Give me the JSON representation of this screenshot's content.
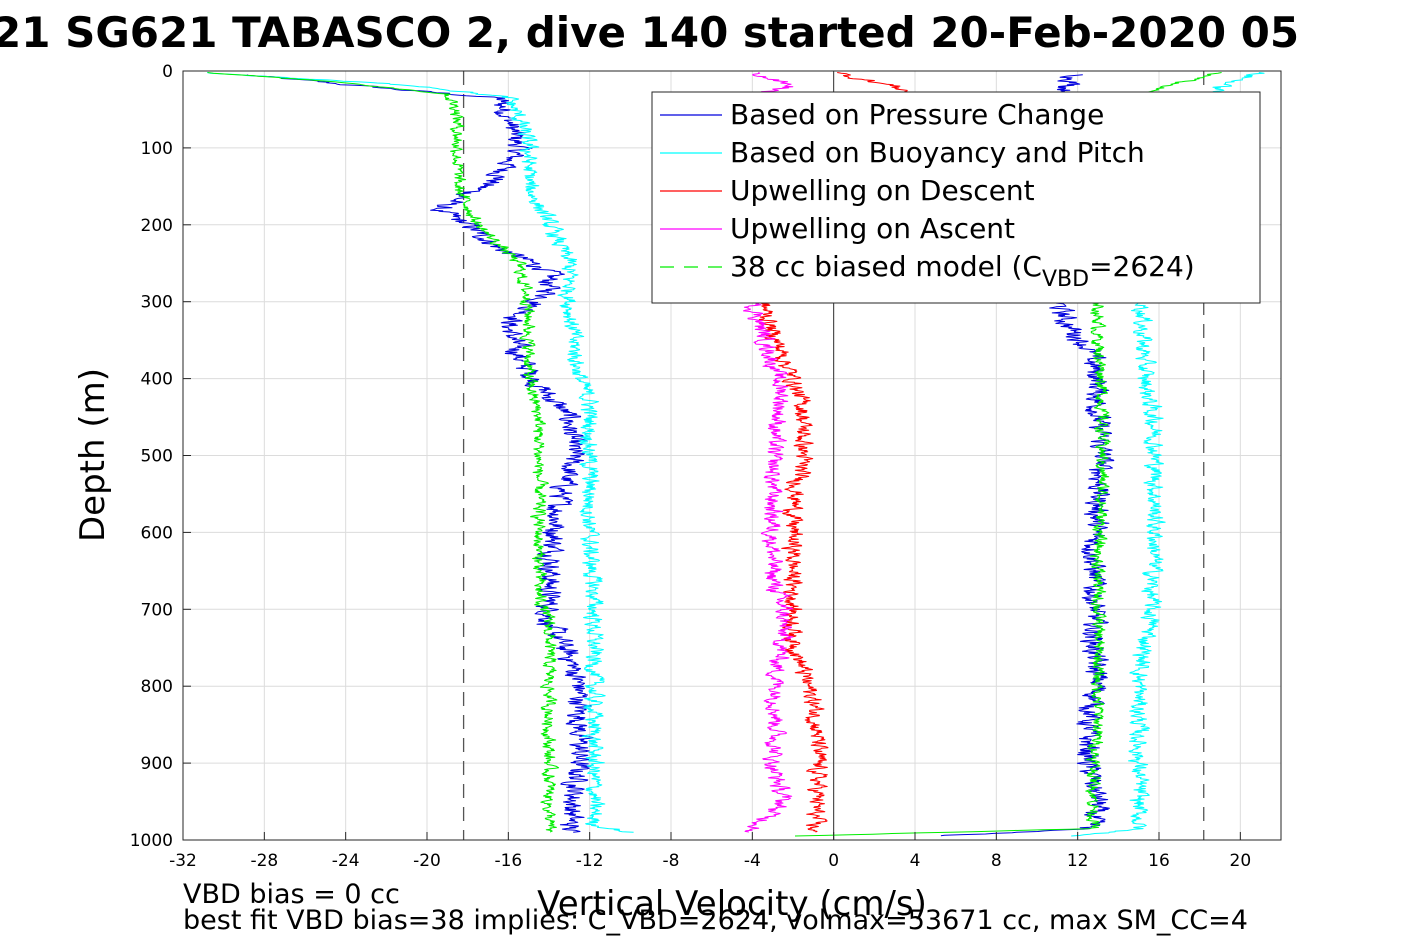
{
  "chart_data": {
    "type": "line",
    "title": "21 SG621 TABASCO 2, dive 140 started 20-Feb-2020 05",
    "xlabel": "Vertical Velocity (cm/s)",
    "ylabel": "Depth (m)",
    "xlim": [
      -32,
      22
    ],
    "ylim": [
      1000,
      0
    ],
    "y_reversed": true,
    "grid": true,
    "x_ticks": [
      -32,
      -28,
      -24,
      -20,
      -16,
      -12,
      -8,
      -4,
      0,
      4,
      8,
      12,
      16,
      20
    ],
    "x_tick_labels": [
      "-32",
      "-28",
      "-24",
      "-20",
      "-16",
      "-12",
      "-8",
      "-4",
      "0",
      "4",
      "8",
      "12",
      "16",
      "20"
    ],
    "y_ticks": [
      0,
      100,
      200,
      300,
      400,
      500,
      600,
      700,
      800,
      900,
      1000
    ],
    "y_tick_labels": [
      "0",
      "100",
      "200",
      "300",
      "400",
      "500",
      "600",
      "700",
      "800",
      "900",
      "1000"
    ],
    "reference_lines": {
      "dashed_x": [
        -18.2,
        18.2
      ],
      "solid_x": [
        0
      ]
    },
    "legend_position": "top-right",
    "legend": [
      {
        "pre": "Based on Pressure Change",
        "sub": "",
        "post": "",
        "color": "#0000dd",
        "style": "solid"
      },
      {
        "pre": "Based on Buoyancy and Pitch",
        "sub": "",
        "post": "",
        "color": "#00ffff",
        "style": "solid"
      },
      {
        "pre": "Upwelling on Descent",
        "sub": "",
        "post": "",
        "color": "#ff0000",
        "style": "solid"
      },
      {
        "pre": "Upwelling on Ascent",
        "sub": "",
        "post": "",
        "color": "#ff00ff",
        "style": "solid"
      },
      {
        "pre": "38 cc biased model (C",
        "sub": "VBD",
        "post": "=2624)",
        "color": "#00ee00",
        "style": "dashed"
      }
    ],
    "series": [
      {
        "name": "Based on Pressure Change",
        "color": "#0000dd",
        "noise": 0.45,
        "segments": [
          {
            "depth": [
              5,
              25,
              35,
              60,
              100,
              140,
              180,
              200,
              230,
              260,
              290,
              330,
              370,
              410,
              450,
              500,
              560,
              620,
              680,
              720,
              760,
              800,
              850,
              900,
              950,
              990
            ],
            "v": [
              -29,
              -21,
              -16.5,
              -16,
              -15.5,
              -16.5,
              -19.5,
              -18,
              -16.5,
              -14,
              -14,
              -16,
              -15.5,
              -14.5,
              -13,
              -12.8,
              -13.5,
              -13.8,
              -14,
              -14,
              -13,
              -12.5,
              -12.5,
              -12.5,
              -12.8,
              -13
            ]
          },
          {
            "depth": [
              5,
              25,
              60,
              100,
              200,
              260,
              300,
              330,
              360,
              400,
              460,
              500,
              560,
              620,
              680,
              720,
              760,
              800,
              850,
              900,
              950,
              985,
              995
            ],
            "v": [
              12,
              11.5,
              13,
              13,
              12,
              11.5,
              11,
              11.5,
              12.5,
              13,
              13,
              13.2,
              13,
              12.8,
              12.8,
              12.8,
              12.8,
              13,
              12.5,
              12.5,
              13,
              12.5,
              5
            ]
          }
        ]
      },
      {
        "name": "Based on Buoyancy and Pitch",
        "color": "#00ffff",
        "noise": 0.35,
        "segments": [
          {
            "depth": [
              2,
              20,
              35,
              60,
              100,
              150,
              200,
              250,
              300,
              350,
              400,
              430,
              500,
              560,
              620,
              680,
              720,
              760,
              800,
              850,
              900,
              950,
              980,
              990
            ],
            "v": [
              -31,
              -20,
              -16,
              -15.5,
              -15,
              -15,
              -14,
              -13,
              -13,
              -12.8,
              -12.5,
              -12,
              -12,
              -12,
              -12,
              -11.8,
              -11.8,
              -11.8,
              -11.8,
              -11.8,
              -11.8,
              -11.8,
              -11.8,
              -10
            ]
          },
          {
            "depth": [
              2,
              20,
              100,
              300,
              340,
              400,
              460,
              500,
              560,
              620,
              680,
              720,
              760,
              800,
              850,
              900,
              950,
              985,
              995
            ],
            "v": [
              21,
              19,
              17,
              15.2,
              15.2,
              15.3,
              15.8,
              15.8,
              15.8,
              15.8,
              15.6,
              15.6,
              15.2,
              15,
              15,
              15,
              15,
              15,
              12
            ]
          }
        ]
      },
      {
        "name": "Upwelling on Descent",
        "color": "#ff0000",
        "noise": 0.35,
        "segments": [
          {
            "depth": [
              2,
              20,
              40
            ],
            "v": [
              0,
              3,
              5
            ]
          },
          {
            "depth": [
              300,
              340,
              370,
              400,
              440,
              470,
              500,
              540,
              580,
              620,
              660,
              700,
              740,
              780,
              820,
              860,
              900,
              940,
              990
            ],
            "v": [
              -3.5,
              -3,
              -2.5,
              -2,
              -1.5,
              -1.5,
              -1.5,
              -1.8,
              -2,
              -2,
              -2,
              -2,
              -2,
              -1.5,
              -1,
              -0.8,
              -0.8,
              -0.8,
              -1
            ]
          }
        ]
      },
      {
        "name": "Upwelling on Ascent",
        "color": "#ff00ff",
        "noise": 0.35,
        "segments": [
          {
            "depth": [
              2,
              20,
              40
            ],
            "v": [
              -4,
              -2,
              -6
            ]
          },
          {
            "depth": [
              300,
              340,
              380,
              420,
              460,
              500,
              540,
              580,
              620,
              660,
              700,
              740,
              780,
              820,
              860,
              900,
              950,
              990
            ],
            "v": [
              -4,
              -3.5,
              -3,
              -2.5,
              -2.8,
              -3,
              -3,
              -3,
              -3,
              -3,
              -2.5,
              -2.5,
              -2.8,
              -2.8,
              -2.8,
              -3,
              -2.5,
              -4
            ]
          }
        ]
      },
      {
        "name": "38 cc biased model (CVBD=2624)",
        "color": "#00ee00",
        "noise": 0.25,
        "segments": [
          {
            "depth": [
              2,
              15,
              30,
              50,
              100,
              150,
              200,
              250,
              300,
              350,
              400,
              450,
              500,
              560,
              620,
              680,
              720,
              760,
              800,
              850,
              900,
              950,
              990
            ],
            "v": [
              -31,
              -24,
              -19,
              -18.5,
              -18.5,
              -18.5,
              -17.5,
              -15.5,
              -15,
              -15,
              -15,
              -14.5,
              -14.5,
              -14.5,
              -14.5,
              -14.5,
              -14,
              -14,
              -14,
              -14,
              -14,
              -14,
              -14
            ]
          },
          {
            "depth": [
              2,
              15,
              30,
              100,
              200,
              300,
              350,
              400,
              450,
              500,
              560,
              620,
              680,
              720,
              760,
              800,
              850,
              900,
              950,
              985,
              995
            ],
            "v": [
              19,
              17,
              15,
              14,
              13,
              13,
              13,
              13.2,
              13.2,
              13.2,
              13.2,
              13,
              13,
              13,
              13,
              13,
              13,
              12.8,
              12.8,
              12.8,
              -2
            ]
          }
        ]
      }
    ]
  },
  "footer": {
    "line1": "VBD bias = 0 cc",
    "line2": "best fit VBD bias=38 implies: C_VBD=2624, volmax=53671 cc, max SM_CC=4"
  }
}
